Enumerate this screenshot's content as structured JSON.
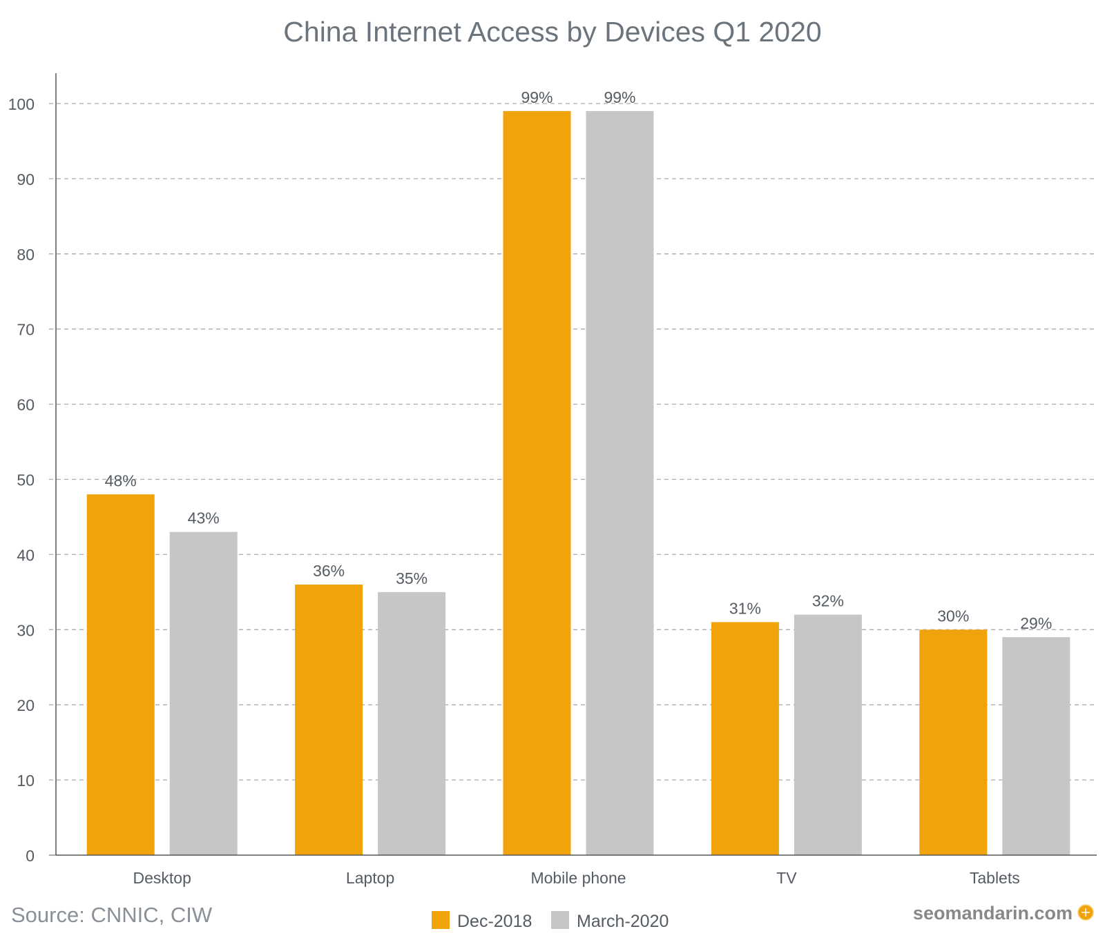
{
  "chart_data": {
    "type": "bar",
    "title": "China Internet Access by Devices Q1 2020",
    "xlabel": "",
    "ylabel": "",
    "ylim": [
      0,
      100
    ],
    "yticks": [
      0,
      10,
      20,
      30,
      40,
      50,
      60,
      70,
      80,
      90,
      100
    ],
    "grid": true,
    "categories": [
      "Desktop",
      "Laptop",
      "Mobile phone",
      "TV",
      "Tablets"
    ],
    "series": [
      {
        "name": "Dec-2018",
        "color": "#F0A30A",
        "values": [
          48,
          36,
          99,
          31,
          30
        ],
        "labels": [
          "48%",
          "36%",
          "99%",
          "31%",
          "30%"
        ]
      },
      {
        "name": "March-2020",
        "color": "#C6C6C6",
        "values": [
          43,
          35,
          99,
          32,
          29
        ],
        "labels": [
          "43%",
          "35%",
          "99%",
          "32%",
          "29%"
        ]
      }
    ],
    "legend_position": "bottom-center"
  },
  "source": "Source:  CNNIC, CIW",
  "watermark": "seomandarin.com"
}
